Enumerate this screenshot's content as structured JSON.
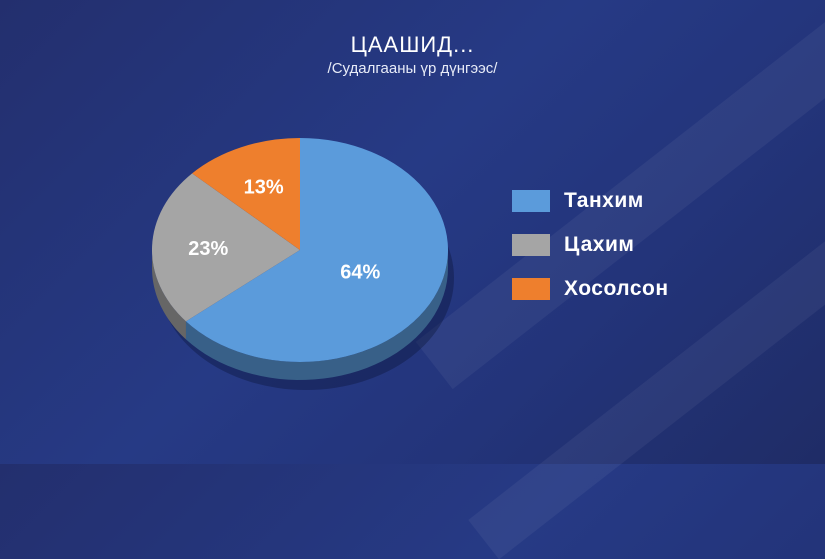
{
  "header": {
    "title": "ЦААШИД...",
    "subtitle": "/Судалгааны үр дүнгээс/"
  },
  "colors": {
    "Танхим": "#5b9bdb",
    "Цахим": "#a5a5a5",
    "Хосолсон": "#ee7f2d"
  },
  "chart_data": {
    "type": "pie",
    "categories": [
      "Танхим",
      "Цахим",
      "Хосолсон"
    ],
    "values": [
      64,
      23,
      13
    ],
    "labels": [
      "64%",
      "23%",
      "13%"
    ],
    "legend_position": "right",
    "style": "3d"
  }
}
